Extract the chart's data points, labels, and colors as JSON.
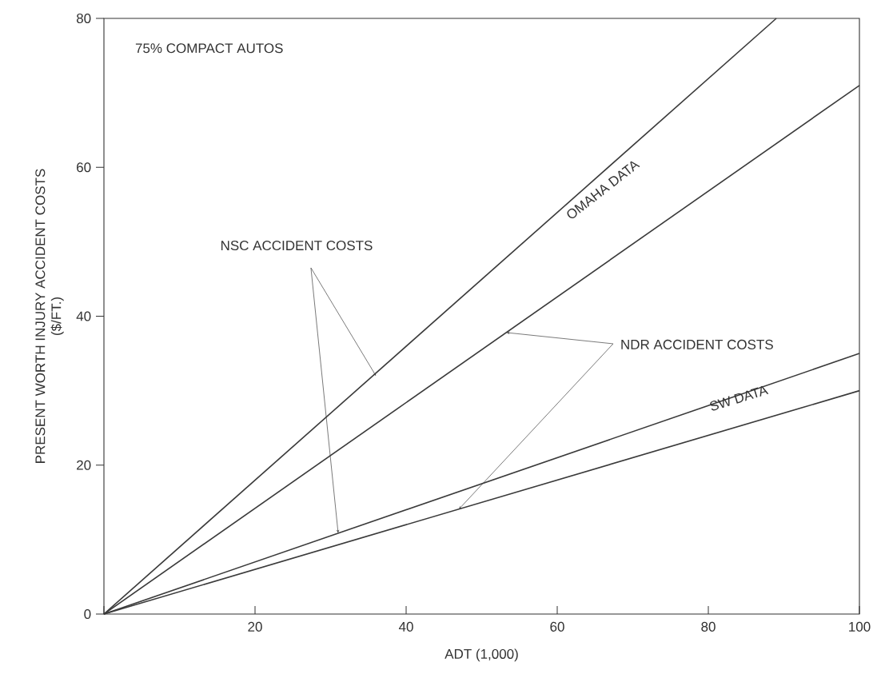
{
  "chart_data": {
    "type": "line",
    "xlabel": "ADT (1,000)",
    "ylabel": "PRESENT WORTH INJURY ACCIDENT COSTS\n($/FT.)",
    "series": [
      {
        "color": "#3a3a3a",
        "x": [
          0,
          89
        ],
        "values": [
          0,
          80
        ]
      },
      {
        "color": "#3a3a3a",
        "x": [
          0,
          100
        ],
        "values": [
          0,
          71
        ]
      },
      {
        "color": "#3a3a3a",
        "x": [
          0,
          100
        ],
        "values": [
          0,
          35
        ]
      },
      {
        "color": "#3a3a3a",
        "x": [
          0,
          100
        ],
        "values": [
          0,
          30
        ]
      }
    ],
    "xlim": [
      0,
      100
    ],
    "ylim": [
      0,
      80
    ],
    "xticks": [
      {
        "value": 0,
        "label": null
      },
      20,
      40,
      60,
      80,
      100
    ],
    "yticks": [
      0,
      20,
      40,
      60,
      80
    ],
    "grid": false,
    "marker": "none",
    "line_style": "solid",
    "annotations": [
      "75% COMPACT AUTOS",
      {
        "text": "NSC ACCIDENT COSTS",
        "x": 36,
        "y": 32
      },
      {
        "text": "NDR ACCIDENT COSTS",
        "x": 53.3,
        "y": 37.8
      },
      "OMAHA DATA",
      "SW DATA"
    ]
  }
}
